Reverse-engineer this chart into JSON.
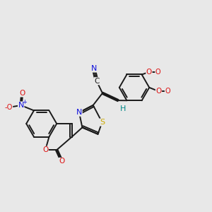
{
  "bg_color": "#e8e8e8",
  "bond_color": "#1a1a1a",
  "bond_width": 1.4,
  "figsize": [
    3.0,
    3.0
  ],
  "dpi": 100,
  "colors": {
    "N": "#1010dd",
    "O": "#dd1010",
    "S": "#ccaa00",
    "H": "#008888",
    "C": "#1a1a1a"
  }
}
